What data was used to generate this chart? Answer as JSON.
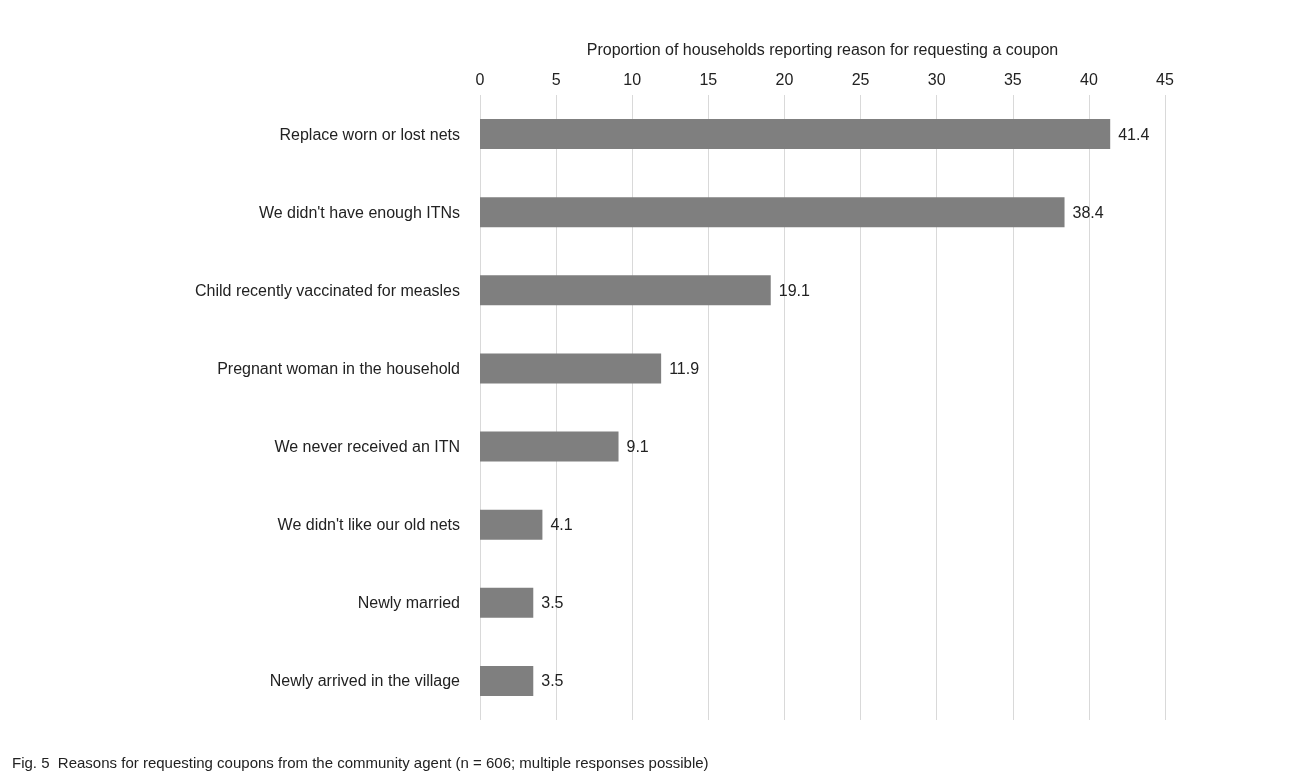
{
  "chart_data": {
    "type": "bar",
    "orientation": "horizontal",
    "xlabel": "Proportion of households reporting reason for requesting a coupon",
    "categories": [
      "Replace worn or lost nets",
      "We didn't have enough ITNs",
      "Child recently vaccinated for measles",
      "Pregnant woman in the household",
      "We never received an ITN",
      "We didn't like our old nets",
      "Newly married",
      "Newly arrived in the village"
    ],
    "values": [
      41.4,
      38.4,
      19.1,
      11.9,
      9.1,
      4.1,
      3.5,
      3.5
    ],
    "color": "#7f7f7f",
    "xlim": [
      0,
      45
    ],
    "xticks": [
      0,
      5,
      10,
      15,
      20,
      25,
      30,
      35,
      40,
      45
    ],
    "grid": "x",
    "data_labels": true,
    "annotations": [
      "Fig. 5  Reasons for requesting coupons from the community agent (n = 606; multiple responses possible)"
    ]
  }
}
